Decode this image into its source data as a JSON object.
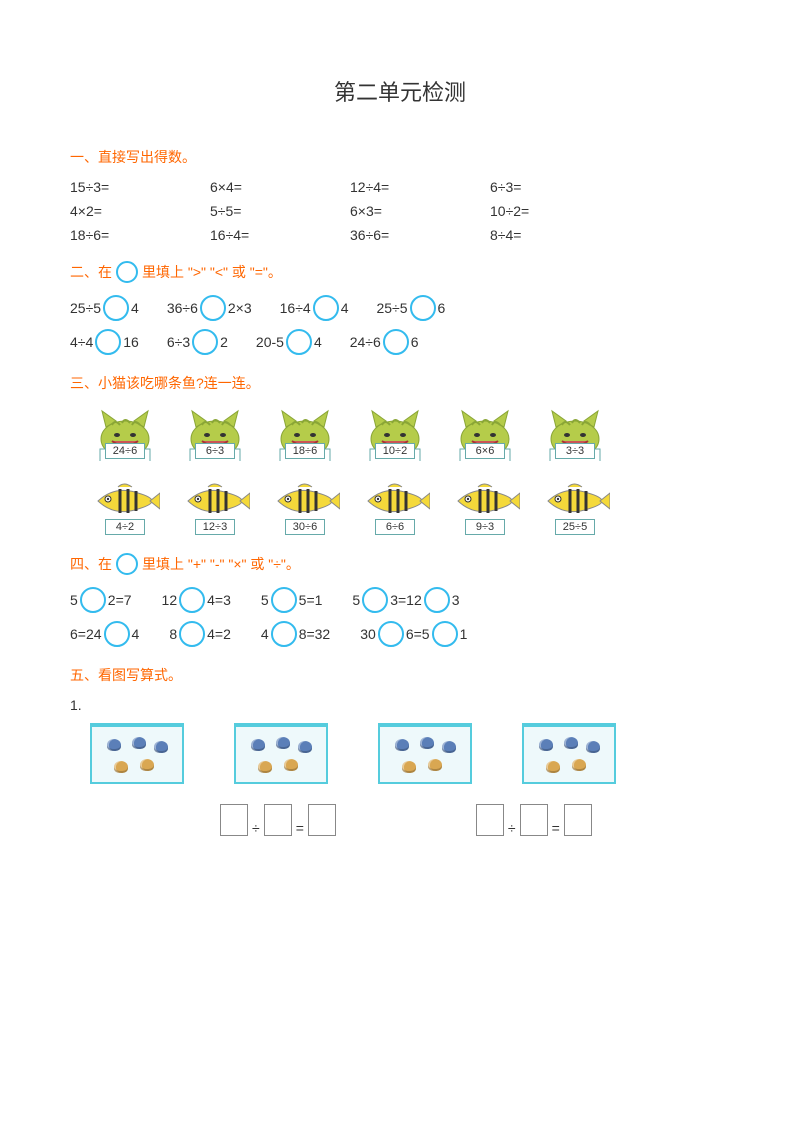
{
  "title": "第二单元检测",
  "s1": {
    "title": "一、直接写出得数。",
    "rows": [
      [
        "15÷3=",
        "6×4=",
        "12÷4=",
        "6÷3="
      ],
      [
        "4×2=",
        "5÷5=",
        "6×3=",
        "10÷2="
      ],
      [
        "18÷6=",
        "16÷4=",
        "36÷6=",
        "8÷4="
      ]
    ]
  },
  "s2": {
    "pre": "二、在",
    "post": "里填上 \">\" \"<\" 或 \"=\"。",
    "rows": [
      [
        [
          "25÷5",
          "4"
        ],
        [
          "36÷6",
          "2×3"
        ],
        [
          "16÷4",
          "4"
        ],
        [
          "25÷5",
          "6"
        ]
      ],
      [
        [
          "4÷4",
          "16"
        ],
        [
          "6÷3",
          "2"
        ],
        [
          "20-5",
          "4"
        ],
        [
          "24÷6",
          "6"
        ]
      ]
    ]
  },
  "s3": {
    "title": "三、小猫该吃哪条鱼?连一连。",
    "cats": [
      "24÷6",
      "6÷3",
      "18÷6",
      "10÷2",
      "6×6",
      "3÷3"
    ],
    "fish": [
      "4÷2",
      "12÷3",
      "30÷6",
      "6÷6",
      "9÷3",
      "25÷5"
    ],
    "cat_body": "#b5cc4a",
    "cat_stripe": "#8aa636",
    "fish_body": "#f4d93a",
    "fish_stripe": "#333"
  },
  "s4": {
    "pre": "四、在",
    "post": "里填上 \"+\" \"-\" \"×\" 或 \"÷\"。",
    "rows": [
      [
        {
          "p": [
            "5",
            "2=7"
          ]
        },
        {
          "p": [
            "12",
            "4=3"
          ]
        },
        {
          "p": [
            "5",
            "5=1"
          ]
        },
        {
          "p": [
            "5",
            "3=12",
            "3"
          ]
        }
      ],
      [
        {
          "p": [
            "6=24",
            "4"
          ]
        },
        {
          "p": [
            "8",
            "4=2"
          ]
        },
        {
          "p": [
            "4",
            "8=32"
          ]
        },
        {
          "p": [
            "30",
            "6=5",
            "1"
          ]
        }
      ]
    ]
  },
  "s5": {
    "title": "五、看图写算式。",
    "item_no": "1.",
    "shell_colors": {
      "a": "#5b7fb8",
      "b": "#d9a752"
    }
  }
}
